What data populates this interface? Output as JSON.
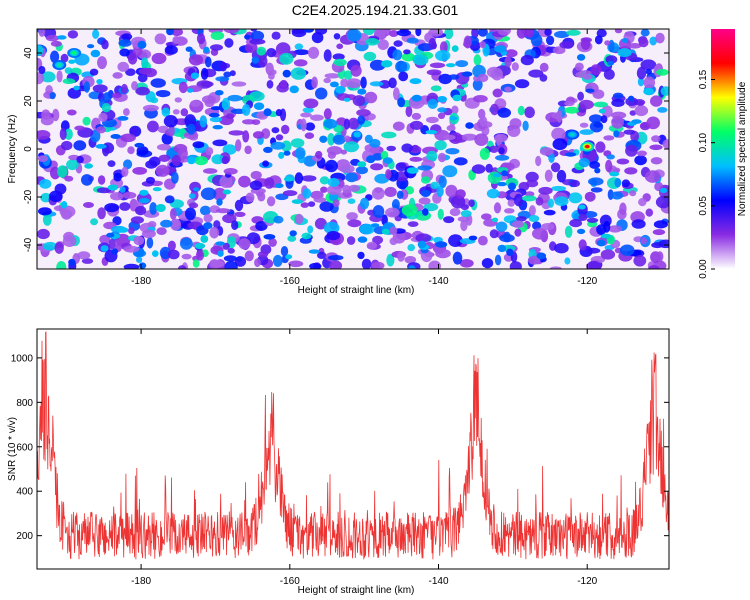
{
  "title": "C2E4.2025.194.21.33.G01",
  "chart_data": [
    {
      "type": "heatmap",
      "xlabel": "Height of straight line (km)",
      "ylabel": "Frequency (Hz)",
      "xlim": [
        -194,
        -109
      ],
      "ylim": [
        -50,
        50
      ],
      "x_ticks": [
        -180,
        -160,
        -140,
        -120
      ],
      "y_ticks": [
        -40,
        -20,
        0,
        20,
        40
      ],
      "colorbar": {
        "label": "Normalized spectral amplitude",
        "range": [
          0,
          0.19
        ],
        "ticks": [
          0.0,
          0.05,
          0.1,
          0.15
        ],
        "tick_labels": [
          "0.00",
          "0.05",
          "0.10",
          "0.15"
        ],
        "colormap": [
          "#ffffff",
          "#8a2be2",
          "#0000ff",
          "#00bfff",
          "#00ff66",
          "#ffff00",
          "#ff0000",
          "#ff0088"
        ]
      },
      "notable_peaks": [
        {
          "x": -120,
          "y": 1,
          "value": 0.19
        },
        {
          "x": -189,
          "y": 40,
          "value": 0.12
        },
        {
          "x": -191,
          "y": 35,
          "value": 0.11
        },
        {
          "x": -122,
          "y": 6,
          "value": 0.1
        }
      ]
    },
    {
      "type": "line",
      "xlabel": "Height of straight line (km)",
      "ylabel": "SNR (10 * v/v)",
      "xlim": [
        -194,
        -109
      ],
      "ylim": [
        50,
        1130
      ],
      "x_ticks": [
        -180,
        -160,
        -140,
        -120
      ],
      "y_ticks": [
        200,
        400,
        600,
        800,
        1000
      ],
      "color": "#ee3333",
      "baseline": 200,
      "peaks": [
        {
          "x": -193,
          "y": 1130
        },
        {
          "x": -162.5,
          "y": 850
        },
        {
          "x": -135,
          "y": 1050
        },
        {
          "x": -111,
          "y": 1060
        }
      ]
    }
  ]
}
